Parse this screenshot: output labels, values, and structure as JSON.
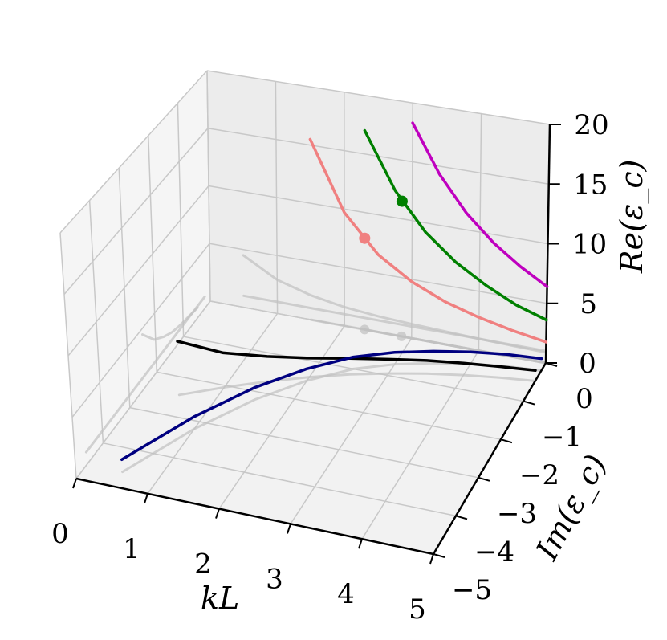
{
  "chart_data": {
    "type": "line",
    "projection": "3d",
    "grid": true,
    "axes": {
      "x": {
        "label": "kL",
        "range": [
          0,
          5
        ],
        "ticks": [
          "0",
          "1",
          "2",
          "3",
          "4",
          "5"
        ]
      },
      "y": {
        "label": "Im(ε_c)",
        "range": [
          -5,
          0
        ],
        "ticks": [
          "0",
          "−1",
          "−2",
          "−3",
          "−4",
          "−5"
        ]
      },
      "z": {
        "label": "Re(ε_c)",
        "range": [
          0,
          20
        ],
        "ticks": [
          "0",
          "5",
          "10",
          "15",
          "20"
        ]
      }
    },
    "series": [
      {
        "color": "#000000",
        "x": [
          0.5,
          1.0,
          1.5,
          2.0,
          2.5,
          3.0,
          3.5,
          4.0,
          4.5,
          5.0
        ],
        "y": [
          -2.45,
          -2.05,
          -1.7,
          -1.4,
          -1.15,
          -0.95,
          -0.78,
          -0.65,
          -0.55,
          -0.47
        ],
        "z": [
          4.5,
          2.9,
          2.1,
          1.6,
          1.35,
          1.2,
          1.1,
          1.0,
          0.93,
          0.88
        ]
      },
      {
        "color": "#000080",
        "x": [
          0.5,
          1.0,
          1.5,
          2.0,
          2.5,
          3.0,
          3.5,
          4.0,
          4.5,
          5.0
        ],
        "y": [
          -4.6,
          -3.2,
          -2.2,
          -1.5,
          -1.0,
          -0.7,
          -0.5,
          -0.35,
          -0.25,
          -0.2
        ],
        "z": [
          1.0,
          1.0,
          1.0,
          1.0,
          1.0,
          1.0,
          1.0,
          1.0,
          1.0,
          1.0
        ]
      },
      {
        "color": "#f08080",
        "x": [
          1.5,
          2.0,
          2.5,
          3.0,
          3.5,
          4.0,
          4.5,
          5.0
        ],
        "y": [
          0,
          0,
          0,
          0,
          0,
          0,
          0,
          0
        ],
        "z": [
          15.5,
          9.7,
          6.6,
          4.8,
          3.6,
          2.8,
          2.2,
          1.75
        ]
      },
      {
        "color": "#008000",
        "x": [
          2.3,
          2.75,
          3.2,
          3.65,
          4.1,
          4.55,
          5.0
        ],
        "y": [
          0,
          0,
          0,
          0,
          0,
          0,
          0
        ],
        "z": [
          17.0,
          12.3,
          9.2,
          7.1,
          5.6,
          4.4,
          3.6
        ]
      },
      {
        "color": "#bf00bf",
        "x": [
          3.0,
          3.4,
          3.8,
          4.2,
          4.6,
          5.0
        ],
        "y": [
          0,
          0,
          0,
          0,
          0,
          0
        ],
        "z": [
          18.3,
          14.3,
          11.4,
          9.3,
          7.7,
          6.4
        ]
      }
    ],
    "markers": [
      {
        "color": "#f08080",
        "x": 2.3,
        "y": 0,
        "z": 7.8
      },
      {
        "color": "#008000",
        "x": 2.85,
        "y": 0,
        "z": 11.5
      }
    ]
  }
}
